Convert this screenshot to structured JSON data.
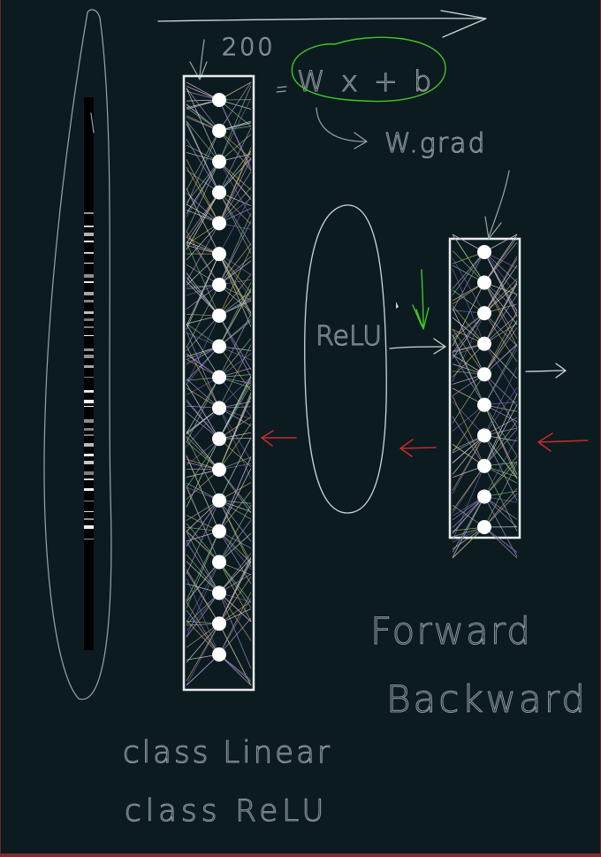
{
  "labels": {
    "size": "200",
    "formula": "W x + b",
    "grad": "W.grad",
    "relu_blob": "ReLU",
    "forward": "Forward",
    "backward": "Backward",
    "class_linear": "class Linear",
    "class_relu": "class ReLU"
  },
  "layers": {
    "linear": {
      "node_count": 19
    },
    "relu_out": {
      "node_count": 10
    }
  },
  "colors": {
    "background": "#0c1b20",
    "ink": "#d0d6d8",
    "red_arrow": "#c42a2a",
    "green_mark": "#3ec62a",
    "edge_palette": [
      "#b59ad6",
      "#8fbf8f",
      "#e0e0e0",
      "#c9b26a",
      "#7a6bb0"
    ]
  }
}
